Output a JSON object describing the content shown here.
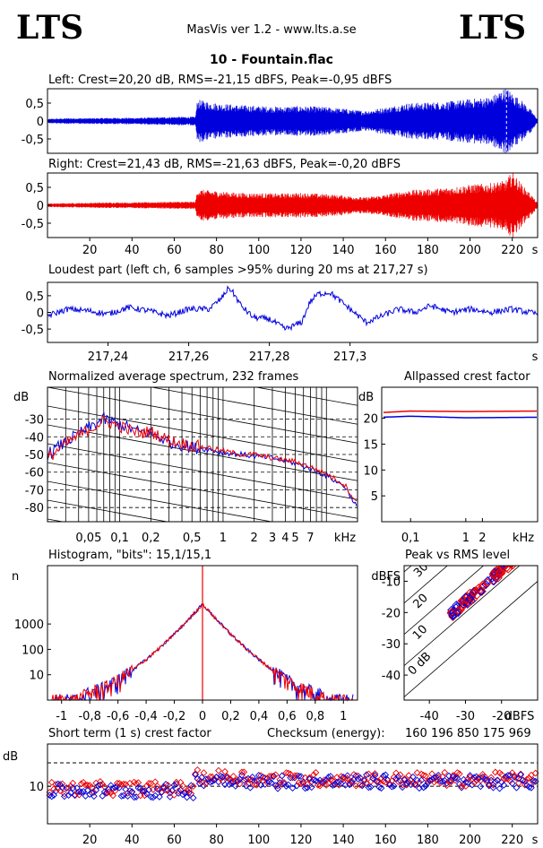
{
  "header": {
    "logo_left": "LTS",
    "logo_right": "LTS",
    "app": "MasVis ver 1.2 - www.lts.a.se",
    "file": "10 - Fountain.flac"
  },
  "colors": {
    "left": "#0000dd",
    "right": "#ee0000"
  },
  "chart_data": [
    {
      "type": "area",
      "id": "left-wave",
      "title": "Left: Crest=20,20 dB, RMS=-21,15 dBFS, Peak=-0,95 dBFS",
      "ylim": [
        -0.9,
        0.9
      ],
      "yticks": [
        "0,5",
        "0",
        "-0,5"
      ],
      "ytick_values": [
        0.5,
        0,
        -0.5
      ],
      "xlim": [
        0,
        232
      ],
      "envelope": {
        "x": [
          0,
          10,
          20,
          30,
          40,
          50,
          60,
          70,
          71,
          80,
          90,
          100,
          110,
          120,
          130,
          140,
          150,
          160,
          170,
          180,
          190,
          200,
          210,
          217,
          220,
          225,
          229,
          232
        ],
        "amp": [
          0.06,
          0.08,
          0.08,
          0.09,
          0.09,
          0.1,
          0.12,
          0.12,
          0.6,
          0.5,
          0.45,
          0.42,
          0.4,
          0.42,
          0.4,
          0.35,
          0.28,
          0.38,
          0.5,
          0.52,
          0.55,
          0.62,
          0.68,
          0.95,
          0.78,
          0.55,
          0.3,
          0.05
        ]
      },
      "marker_x": 217.27
    },
    {
      "type": "area",
      "id": "right-wave",
      "title": "Right: Crest=21,43 dB, RMS=-21,63 dBFS, Peak=-0,20 dBFS",
      "ylim": [
        -0.9,
        0.9
      ],
      "yticks": [
        "0,5",
        "0",
        "-0,5"
      ],
      "ytick_values": [
        0.5,
        0,
        -0.5
      ],
      "xlim": [
        0,
        232
      ],
      "xticks": [
        "20",
        "40",
        "60",
        "80",
        "100",
        "120",
        "140",
        "160",
        "180",
        "200",
        "220"
      ],
      "xtick_values": [
        20,
        40,
        60,
        80,
        100,
        120,
        140,
        160,
        180,
        200,
        220
      ],
      "xunit": "s",
      "envelope": {
        "x": [
          0,
          10,
          20,
          30,
          40,
          50,
          60,
          70,
          71,
          80,
          90,
          100,
          110,
          120,
          130,
          140,
          150,
          160,
          170,
          180,
          190,
          200,
          210,
          217,
          220,
          225,
          229,
          232
        ],
        "amp": [
          0.05,
          0.06,
          0.07,
          0.08,
          0.08,
          0.09,
          0.1,
          0.1,
          0.45,
          0.4,
          0.35,
          0.34,
          0.33,
          0.35,
          0.32,
          0.28,
          0.22,
          0.3,
          0.42,
          0.45,
          0.5,
          0.58,
          0.62,
          0.7,
          0.95,
          0.55,
          0.3,
          0.05
        ]
      }
    },
    {
      "type": "line",
      "id": "loudest-part",
      "title": "Loudest part (left  ch, 6 samples >95% during 20 ms at 217,27 s)",
      "ylim": [
        -0.9,
        0.9
      ],
      "yticks": [
        "0,5",
        "0",
        "-0,5"
      ],
      "ytick_values": [
        0.5,
        0,
        -0.5
      ],
      "xlim": [
        217.225,
        217.3465
      ],
      "xticks": [
        "217,24",
        "217,26",
        "217,28",
        "217,3"
      ],
      "xtick_values": [
        217.24,
        217.26,
        217.28,
        217.3
      ],
      "xunit": "s",
      "x": [
        217.225,
        217.23,
        217.235,
        217.24,
        217.245,
        217.25,
        217.255,
        217.26,
        217.265,
        217.268,
        217.27,
        217.2715,
        217.273,
        217.276,
        217.28,
        217.284,
        217.288,
        217.29,
        217.292,
        217.295,
        217.3,
        217.304,
        217.308,
        217.312,
        217.316,
        217.32,
        217.325,
        217.33,
        217.335,
        217.34,
        217.3465
      ],
      "y": [
        -0.1,
        0.1,
        0.05,
        -0.05,
        0.15,
        0.05,
        -0.1,
        0.1,
        0.1,
        0.4,
        0.75,
        0.5,
        0.2,
        -0.15,
        -0.2,
        -0.5,
        -0.3,
        0.3,
        0.55,
        0.6,
        0.1,
        -0.3,
        -0.1,
        0.1,
        0.0,
        0.2,
        0.0,
        0.1,
        0.0,
        0.1,
        -0.05
      ]
    },
    {
      "type": "line",
      "id": "spectrum",
      "title": "Normalized average spectrum, 232 frames",
      "ylabel": "dB",
      "ylim": [
        -88,
        -12
      ],
      "yticks": [
        "-30",
        "-40",
        "-50",
        "-60",
        "-70",
        "-80"
      ],
      "ytick_values": [
        -30,
        -40,
        -50,
        -60,
        -70,
        -80
      ],
      "xscale": "log",
      "xlim": [
        0.02,
        20
      ],
      "xticks": [
        "0,05",
        "0,1",
        "0,2",
        "0,5",
        "1",
        "2",
        "3",
        "4",
        "5",
        "7"
      ],
      "xtick_values": [
        0.05,
        0.1,
        0.2,
        0.5,
        1,
        2,
        3,
        4,
        5,
        7
      ],
      "xunit": "kHz",
      "series": [
        {
          "color": "#0000dd",
          "x": [
            0.02,
            0.03,
            0.05,
            0.07,
            0.1,
            0.15,
            0.2,
            0.3,
            0.5,
            0.7,
            1,
            1.5,
            2,
            3,
            5,
            7,
            10,
            15,
            20
          ],
          "y": [
            -50,
            -43,
            -35,
            -30,
            -33,
            -37,
            -38,
            -43,
            -46,
            -47,
            -49,
            -50,
            -51,
            -52,
            -55,
            -58,
            -62,
            -68,
            -80
          ]
        },
        {
          "color": "#ee0000",
          "x": [
            0.02,
            0.03,
            0.05,
            0.07,
            0.1,
            0.15,
            0.2,
            0.3,
            0.5,
            0.7,
            1,
            1.5,
            2,
            3,
            5,
            7,
            10,
            15,
            20
          ],
          "y": [
            -52,
            -44,
            -36,
            -31,
            -34,
            -38,
            -37,
            -42,
            -45,
            -46,
            -48,
            -50,
            -50,
            -52,
            -54,
            -57,
            -61,
            -67,
            -78
          ]
        }
      ]
    },
    {
      "type": "line",
      "id": "allpass-crest",
      "title": "Allpassed crest factor",
      "ylabel": "dB",
      "ylim": [
        0,
        26
      ],
      "yticks": [
        "20",
        "15",
        "10",
        "5"
      ],
      "ytick_values": [
        20,
        15,
        10,
        5
      ],
      "xscale": "log",
      "xlim": [
        0.03,
        20
      ],
      "xticks": [
        "0,1",
        "1",
        "2",
        "kHz"
      ],
      "xtick_values": [
        0.1,
        1,
        2
      ],
      "xunit": "kHz",
      "series": [
        {
          "color": "#0000dd",
          "x": [
            0.03,
            0.1,
            1,
            20
          ],
          "y": [
            20.2,
            20.4,
            20.1,
            20.2
          ]
        },
        {
          "color": "#ee0000",
          "x": [
            0.03,
            0.1,
            1,
            20
          ],
          "y": [
            21.1,
            21.4,
            21.3,
            21.4
          ]
        }
      ]
    },
    {
      "type": "line",
      "id": "histogram",
      "title": "Histogram, \"bits\": 15,1/15,1",
      "ylabel": "n",
      "yscale": "log",
      "ylim": [
        1,
        200000
      ],
      "yticks": [
        "1000",
        "100",
        "10"
      ],
      "ytick_values": [
        1000,
        100,
        10
      ],
      "xlim": [
        -1.1,
        1.1
      ],
      "xticks": [
        "-1",
        "-0,8",
        "-0,6",
        "-0,4",
        "-0,2",
        "0",
        "0,2",
        "0,4",
        "0,6",
        "0,8",
        "1"
      ],
      "xtick_values": [
        -1,
        -0.8,
        -0.6,
        -0.4,
        -0.2,
        0,
        0.2,
        0.4,
        0.6,
        0.8,
        1
      ],
      "x": [
        -1,
        -0.9,
        -0.8,
        -0.7,
        -0.6,
        -0.5,
        -0.4,
        -0.3,
        -0.2,
        -0.1,
        -0.05,
        0,
        0.05,
        0.1,
        0.2,
        0.3,
        0.4,
        0.5,
        0.6,
        0.7,
        0.8,
        0.9,
        1
      ],
      "y": [
        1,
        1,
        2,
        3,
        6,
        15,
        40,
        120,
        400,
        1500,
        3000,
        6000,
        3000,
        1500,
        400,
        120,
        40,
        15,
        6,
        3,
        2,
        1,
        1
      ]
    },
    {
      "type": "scatter",
      "id": "peak-vs-rms",
      "title": "Peak vs RMS level",
      "ylabel": "dBFS",
      "xlabel": "dBFS",
      "xlim": [
        -47,
        -10
      ],
      "ylim": [
        -48,
        -5
      ],
      "xticks": [
        "-40",
        "-30",
        "-20"
      ],
      "xtick_values": [
        -40,
        -30,
        -20
      ],
      "yticks": [
        "-10",
        "-20",
        "-30",
        "-40"
      ],
      "ytick_values": [
        -10,
        -20,
        -30,
        -40
      ],
      "diag_labels": [
        "40",
        "30",
        "20",
        "10",
        "0 dB"
      ],
      "diag_offsets": [
        40,
        30,
        20,
        10,
        0
      ]
    },
    {
      "type": "scatter",
      "id": "short-term-crest",
      "title": "Short term (1 s) crest factor",
      "checksum_label": "Checksum (energy):",
      "checksum_value": "160 196 850 175 969",
      "ylabel": "dB",
      "ylim": [
        2,
        19
      ],
      "yticks": [
        "10"
      ],
      "ytick_values": [
        10
      ],
      "dashed_lines": [
        10,
        15
      ],
      "xlim": [
        0,
        232
      ],
      "xticks": [
        "20",
        "40",
        "60",
        "80",
        "100",
        "120",
        "140",
        "160",
        "180",
        "200",
        "220"
      ],
      "xtick_values": [
        20,
        40,
        60,
        80,
        100,
        120,
        140,
        160,
        180,
        200,
        220
      ],
      "xunit": "s"
    }
  ]
}
